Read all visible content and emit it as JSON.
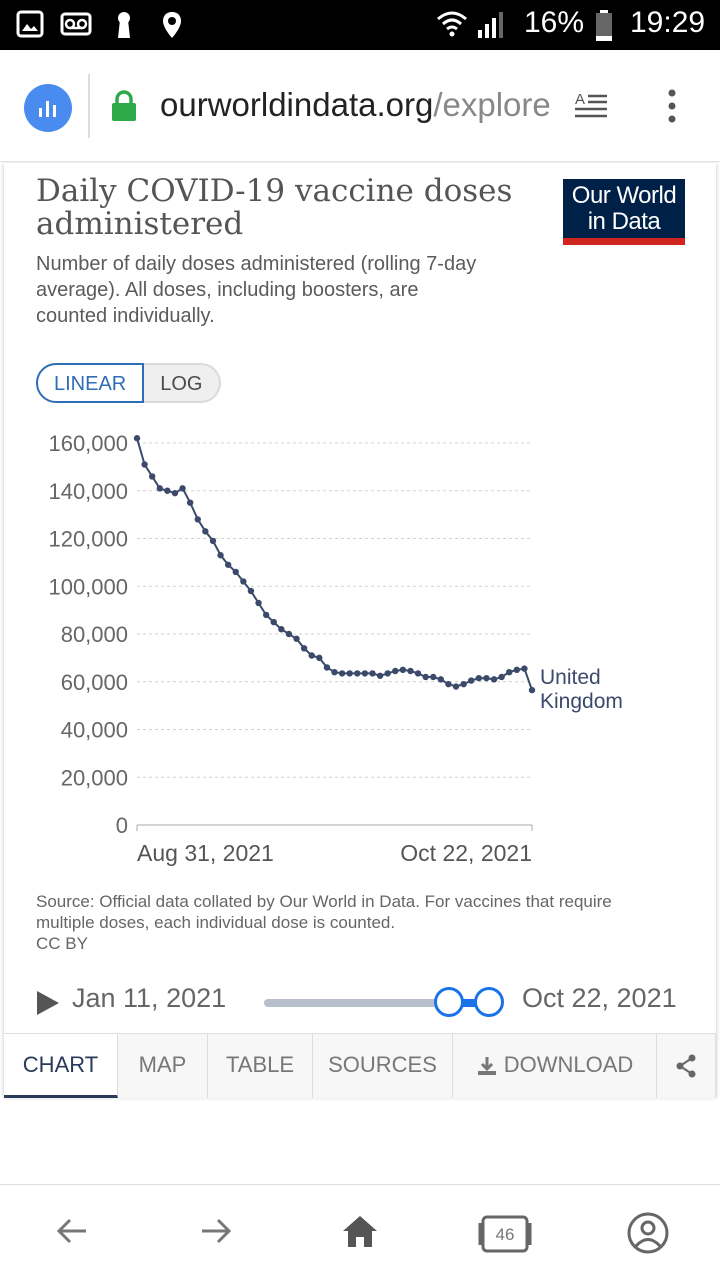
{
  "status_bar": {
    "battery": "16%",
    "time": "19:29"
  },
  "browser": {
    "url_domain": "ourworldindata.org",
    "url_path": "/explore",
    "tab_count": "46"
  },
  "chart_card": {
    "title": "Daily COVID-19 vaccine doses administered",
    "subtitle": "Number of daily doses administered (rolling 7-day average). All doses, including boosters, are counted individually.",
    "logo_line1": "Our World",
    "logo_line2": "in Data",
    "scale_linear": "LINEAR",
    "scale_log": "LOG",
    "source": "Source: Official data collated by Our World in Data. For vaccines that require multiple doses, each individual dose is counted.",
    "license": "CC BY",
    "timeline_start": "Jan 11, 2021",
    "timeline_end": "Oct 22, 2021",
    "tabs": [
      "CHART",
      "MAP",
      "TABLE",
      "SOURCES",
      "DOWNLOAD"
    ]
  },
  "colors": {
    "line": "#3b4a6b",
    "accent": "#1a73e8",
    "logo_bg": "#002147",
    "logo_bar": "#ce261e"
  },
  "chart_data": {
    "type": "line",
    "title": "Daily COVID-19 vaccine doses administered",
    "xlabel": "",
    "ylabel": "",
    "x_tick_labels": [
      "Aug 31, 2021",
      "Oct 22, 2021"
    ],
    "y_ticks": [
      0,
      20000,
      40000,
      60000,
      80000,
      100000,
      120000,
      140000,
      160000
    ],
    "y_tick_labels": [
      "0",
      "20,000",
      "40,000",
      "60,000",
      "80,000",
      "100,000",
      "120,000",
      "140,000",
      "160,000"
    ],
    "ylim": [
      0,
      160000
    ],
    "series": [
      {
        "name": "United Kingdom",
        "name_line1": "United",
        "name_line2": "Kingdom",
        "values": [
          162000,
          151000,
          146000,
          141000,
          140000,
          139000,
          141000,
          135000,
          128000,
          123000,
          119000,
          113000,
          109000,
          106000,
          102000,
          98000,
          93000,
          88000,
          85000,
          82000,
          80000,
          78000,
          74000,
          71000,
          70000,
          66000,
          64000,
          63500,
          63500,
          63500,
          63500,
          63500,
          62500,
          63500,
          64500,
          65000,
          64500,
          63500,
          62000,
          62000,
          61000,
          59000,
          58000,
          59000,
          60500,
          61500,
          61500,
          61000,
          62000,
          64000,
          65000,
          65500,
          56500
        ]
      }
    ]
  }
}
